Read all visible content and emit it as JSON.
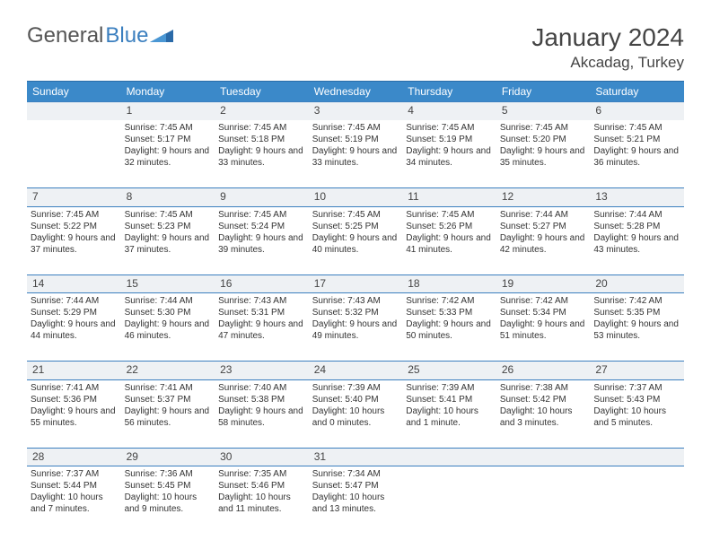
{
  "logo": {
    "text1": "General",
    "text2": "Blue"
  },
  "title": "January 2024",
  "location": "Akcadag, Turkey",
  "day_headers": [
    "Sunday",
    "Monday",
    "Tuesday",
    "Wednesday",
    "Thursday",
    "Friday",
    "Saturday"
  ],
  "colors": {
    "header_bg": "#3b89c9",
    "border": "#3b7fbf",
    "daynum_bg": "#eef1f4",
    "text": "#333333"
  },
  "weeks": [
    {
      "nums": [
        "",
        "1",
        "2",
        "3",
        "4",
        "5",
        "6"
      ],
      "cells": [
        "",
        "Sunrise: 7:45 AM\nSunset: 5:17 PM\nDaylight: 9 hours and 32 minutes.",
        "Sunrise: 7:45 AM\nSunset: 5:18 PM\nDaylight: 9 hours and 33 minutes.",
        "Sunrise: 7:45 AM\nSunset: 5:19 PM\nDaylight: 9 hours and 33 minutes.",
        "Sunrise: 7:45 AM\nSunset: 5:19 PM\nDaylight: 9 hours and 34 minutes.",
        "Sunrise: 7:45 AM\nSunset: 5:20 PM\nDaylight: 9 hours and 35 minutes.",
        "Sunrise: 7:45 AM\nSunset: 5:21 PM\nDaylight: 9 hours and 36 minutes."
      ]
    },
    {
      "nums": [
        "7",
        "8",
        "9",
        "10",
        "11",
        "12",
        "13"
      ],
      "cells": [
        "Sunrise: 7:45 AM\nSunset: 5:22 PM\nDaylight: 9 hours and 37 minutes.",
        "Sunrise: 7:45 AM\nSunset: 5:23 PM\nDaylight: 9 hours and 37 minutes.",
        "Sunrise: 7:45 AM\nSunset: 5:24 PM\nDaylight: 9 hours and 39 minutes.",
        "Sunrise: 7:45 AM\nSunset: 5:25 PM\nDaylight: 9 hours and 40 minutes.",
        "Sunrise: 7:45 AM\nSunset: 5:26 PM\nDaylight: 9 hours and 41 minutes.",
        "Sunrise: 7:44 AM\nSunset: 5:27 PM\nDaylight: 9 hours and 42 minutes.",
        "Sunrise: 7:44 AM\nSunset: 5:28 PM\nDaylight: 9 hours and 43 minutes."
      ]
    },
    {
      "nums": [
        "14",
        "15",
        "16",
        "17",
        "18",
        "19",
        "20"
      ],
      "cells": [
        "Sunrise: 7:44 AM\nSunset: 5:29 PM\nDaylight: 9 hours and 44 minutes.",
        "Sunrise: 7:44 AM\nSunset: 5:30 PM\nDaylight: 9 hours and 46 minutes.",
        "Sunrise: 7:43 AM\nSunset: 5:31 PM\nDaylight: 9 hours and 47 minutes.",
        "Sunrise: 7:43 AM\nSunset: 5:32 PM\nDaylight: 9 hours and 49 minutes.",
        "Sunrise: 7:42 AM\nSunset: 5:33 PM\nDaylight: 9 hours and 50 minutes.",
        "Sunrise: 7:42 AM\nSunset: 5:34 PM\nDaylight: 9 hours and 51 minutes.",
        "Sunrise: 7:42 AM\nSunset: 5:35 PM\nDaylight: 9 hours and 53 minutes."
      ]
    },
    {
      "nums": [
        "21",
        "22",
        "23",
        "24",
        "25",
        "26",
        "27"
      ],
      "cells": [
        "Sunrise: 7:41 AM\nSunset: 5:36 PM\nDaylight: 9 hours and 55 minutes.",
        "Sunrise: 7:41 AM\nSunset: 5:37 PM\nDaylight: 9 hours and 56 minutes.",
        "Sunrise: 7:40 AM\nSunset: 5:38 PM\nDaylight: 9 hours and 58 minutes.",
        "Sunrise: 7:39 AM\nSunset: 5:40 PM\nDaylight: 10 hours and 0 minutes.",
        "Sunrise: 7:39 AM\nSunset: 5:41 PM\nDaylight: 10 hours and 1 minute.",
        "Sunrise: 7:38 AM\nSunset: 5:42 PM\nDaylight: 10 hours and 3 minutes.",
        "Sunrise: 7:37 AM\nSunset: 5:43 PM\nDaylight: 10 hours and 5 minutes."
      ]
    },
    {
      "nums": [
        "28",
        "29",
        "30",
        "31",
        "",
        "",
        ""
      ],
      "cells": [
        "Sunrise: 7:37 AM\nSunset: 5:44 PM\nDaylight: 10 hours and 7 minutes.",
        "Sunrise: 7:36 AM\nSunset: 5:45 PM\nDaylight: 10 hours and 9 minutes.",
        "Sunrise: 7:35 AM\nSunset: 5:46 PM\nDaylight: 10 hours and 11 minutes.",
        "Sunrise: 7:34 AM\nSunset: 5:47 PM\nDaylight: 10 hours and 13 minutes.",
        "",
        "",
        ""
      ]
    }
  ]
}
